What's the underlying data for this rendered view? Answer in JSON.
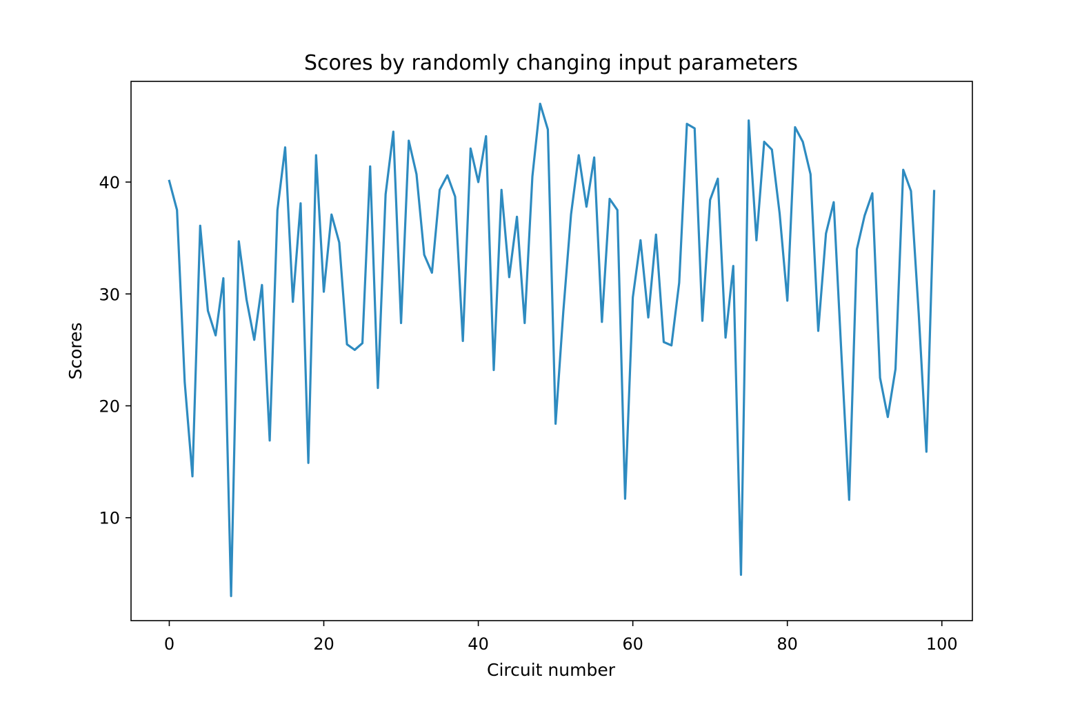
{
  "chart_data": {
    "type": "line",
    "title": "Scores by randomly changing input parameters",
    "xlabel": "Circuit number",
    "ylabel": "Scores",
    "xlim": [
      -4.95,
      103.95
    ],
    "ylim": [
      0.8,
      49.0
    ],
    "xticks": [
      0,
      20,
      40,
      60,
      80,
      100
    ],
    "yticks": [
      10,
      20,
      30,
      40
    ],
    "grid": false,
    "color": "#2e8bc0",
    "series": [
      {
        "x": [
          0,
          1,
          2,
          3,
          4,
          5,
          6,
          7,
          8,
          9,
          10,
          11,
          12,
          13,
          14,
          15,
          16,
          17,
          18,
          19,
          20,
          21,
          22,
          23,
          24,
          25,
          26,
          27,
          28,
          29,
          30,
          31,
          32,
          33,
          34,
          35,
          36,
          37,
          38,
          39,
          40,
          41,
          42,
          43,
          44,
          45,
          46,
          47,
          48,
          49,
          50,
          51,
          52,
          53,
          54,
          55,
          56,
          57,
          58,
          59,
          60,
          61,
          62,
          63,
          64,
          65,
          66,
          67,
          68,
          69,
          70,
          71,
          72,
          73,
          74,
          75,
          76,
          77,
          78,
          79,
          80,
          81,
          82,
          83,
          84,
          85,
          86,
          87,
          88,
          89,
          90,
          91,
          92,
          93,
          94,
          95,
          96,
          97,
          98,
          99
        ],
        "values": [
          40.1,
          37.5,
          22.1,
          13.7,
          36.1,
          28.5,
          26.3,
          31.4,
          3.0,
          34.7,
          29.5,
          25.9,
          30.8,
          16.9,
          37.5,
          43.1,
          29.3,
          38.1,
          14.9,
          42.4,
          30.2,
          37.1,
          34.6,
          25.5,
          25.0,
          25.6,
          41.4,
          21.6,
          38.9,
          44.5,
          27.4,
          43.7,
          40.7,
          33.5,
          31.9,
          39.3,
          40.6,
          38.7,
          25.8,
          43.0,
          40.0,
          44.1,
          23.2,
          39.3,
          31.5,
          36.9,
          27.4,
          40.5,
          47.0,
          44.7,
          18.4,
          28.4,
          37.1,
          42.4,
          37.8,
          42.2,
          27.5,
          38.5,
          37.5,
          11.7,
          29.7,
          34.8,
          27.9,
          35.3,
          25.7,
          25.4,
          31.0,
          45.2,
          44.8,
          27.6,
          38.4,
          40.3,
          26.1,
          32.5,
          4.9,
          45.5,
          34.8,
          43.6,
          42.9,
          37.2,
          29.4,
          44.9,
          43.6,
          40.7,
          26.7,
          35.4,
          38.2,
          24.6,
          11.6,
          34.0,
          37.0,
          39.0,
          22.5,
          19.0,
          23.3,
          41.1,
          39.2,
          28.3,
          15.9,
          39.2
        ]
      }
    ]
  }
}
